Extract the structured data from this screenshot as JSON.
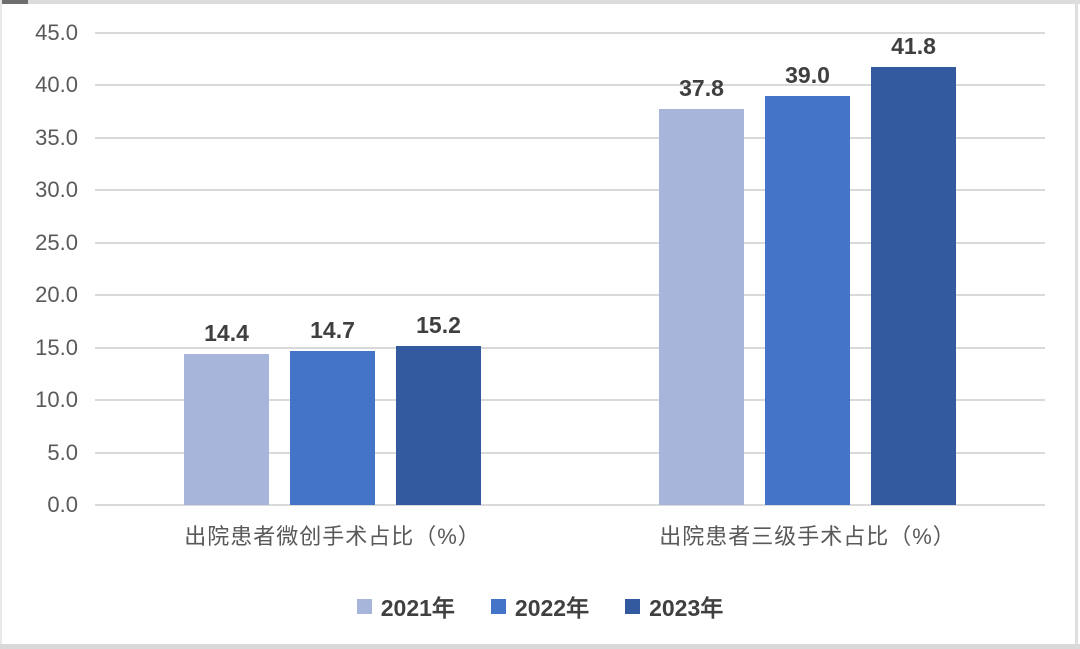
{
  "chart_data": {
    "type": "bar",
    "title": "",
    "categories": [
      "出院患者微创手术占比（%）",
      "出院患者三级手术占比（%）"
    ],
    "series": [
      {
        "name": "2021年",
        "color": "#a7b5da",
        "values": [
          14.4,
          37.8
        ],
        "labels": [
          "14.4",
          "37.8"
        ]
      },
      {
        "name": "2022年",
        "color": "#4474c7",
        "values": [
          14.7,
          39.0
        ],
        "labels": [
          "14.7",
          "39.0"
        ]
      },
      {
        "name": "2023年",
        "color": "#33599f",
        "values": [
          15.2,
          41.8
        ],
        "labels": [
          "15.2",
          "41.8"
        ]
      }
    ],
    "ylim": [
      0,
      45
    ],
    "ytick_step": 5,
    "ytick_labels": [
      "0.0",
      "5.0",
      "10.0",
      "15.0",
      "20.0",
      "25.0",
      "30.0",
      "35.0",
      "40.0",
      "45.0"
    ],
    "grid": true,
    "data_labels": true,
    "legend_position": "bottom",
    "colors": {
      "gridline": "#d9d9d9",
      "axis_text": "#595959",
      "data_label_text": "#3f3f3f",
      "legend_text": "#404040"
    }
  }
}
